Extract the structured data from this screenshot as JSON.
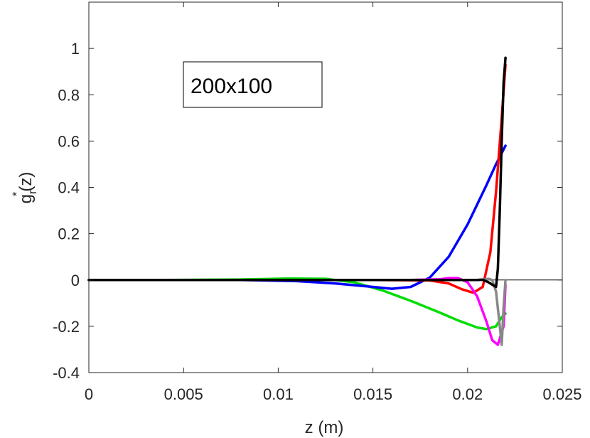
{
  "chart_data": {
    "type": "line",
    "xlabel": "z   (m)",
    "ylabel": "g",
    "ylabel_sub": "r",
    "ylabel_sup": "*",
    "ylabel_arg": "(z)",
    "xlim": [
      0,
      0.025
    ],
    "ylim": [
      -0.4,
      1.2
    ],
    "xticks": [
      0,
      0.005,
      0.01,
      0.015,
      0.02,
      0.025
    ],
    "xtick_labels": [
      "0",
      "0.005",
      "0.01",
      "0.015",
      "0.02",
      "0.025"
    ],
    "yticks": [
      -0.4,
      -0.2,
      0,
      0.2,
      0.4,
      0.6,
      0.8,
      1
    ],
    "ytick_labels": [
      "-0.4",
      "-0.2",
      "0",
      "0.2",
      "0.4",
      "0.6",
      "0.8",
      "1"
    ],
    "grid": false,
    "annotation": "200x100",
    "zero_line": true,
    "series": [
      {
        "color": "#00dd00",
        "x": [
          0,
          0.004,
          0.008,
          0.0105,
          0.0125,
          0.014,
          0.0155,
          0.017,
          0.0185,
          0.0195,
          0.0205,
          0.021,
          0.0215,
          0.0218,
          0.022
        ],
        "y": [
          0,
          0,
          0.002,
          0.006,
          0.005,
          -0.01,
          -0.045,
          -0.09,
          -0.14,
          -0.175,
          -0.205,
          -0.212,
          -0.2,
          -0.16,
          -0.145
        ]
      },
      {
        "color": "#0000ff",
        "x": [
          0,
          0.008,
          0.011,
          0.013,
          0.015,
          0.016,
          0.017,
          0.018,
          0.019,
          0.02,
          0.021,
          0.0215,
          0.022
        ],
        "y": [
          0,
          0,
          -0.005,
          -0.015,
          -0.03,
          -0.038,
          -0.03,
          0.01,
          0.1,
          0.24,
          0.41,
          0.5,
          0.58
        ]
      },
      {
        "color": "#ff0000",
        "x": [
          0,
          0.015,
          0.018,
          0.019,
          0.0197,
          0.0203,
          0.0208,
          0.0212,
          0.0215,
          0.0218,
          0.022
        ],
        "y": [
          0,
          0,
          -0.002,
          -0.015,
          -0.04,
          -0.055,
          -0.03,
          0.12,
          0.38,
          0.7,
          0.93
        ]
      },
      {
        "color": "#ff00ff",
        "x": [
          0,
          0.017,
          0.0185,
          0.019,
          0.0195,
          0.02,
          0.0205,
          0.021,
          0.0213,
          0.0216,
          0.0219,
          0.022
        ],
        "y": [
          0,
          0,
          0.003,
          0.008,
          0.008,
          -0.01,
          -0.07,
          -0.18,
          -0.26,
          -0.28,
          -0.2,
          -0.02
        ]
      },
      {
        "color": "#888888",
        "x": [
          0,
          0.0205,
          0.0208,
          0.0211,
          0.0213,
          0.0215,
          0.0217,
          0.0218,
          0.0219,
          0.022
        ],
        "y": [
          0,
          0,
          0.002,
          0.005,
          0,
          -0.05,
          -0.2,
          -0.28,
          -0.12,
          0
        ]
      },
      {
        "color": "#000000",
        "x": [
          0,
          0.0205,
          0.0208,
          0.0211,
          0.0213,
          0.0215,
          0.0216,
          0.0217,
          0.0218,
          0.0219,
          0.022
        ],
        "y": [
          0,
          0,
          0.001,
          -0.01,
          -0.02,
          -0.03,
          0.05,
          0.3,
          0.6,
          0.85,
          0.96
        ]
      }
    ]
  }
}
